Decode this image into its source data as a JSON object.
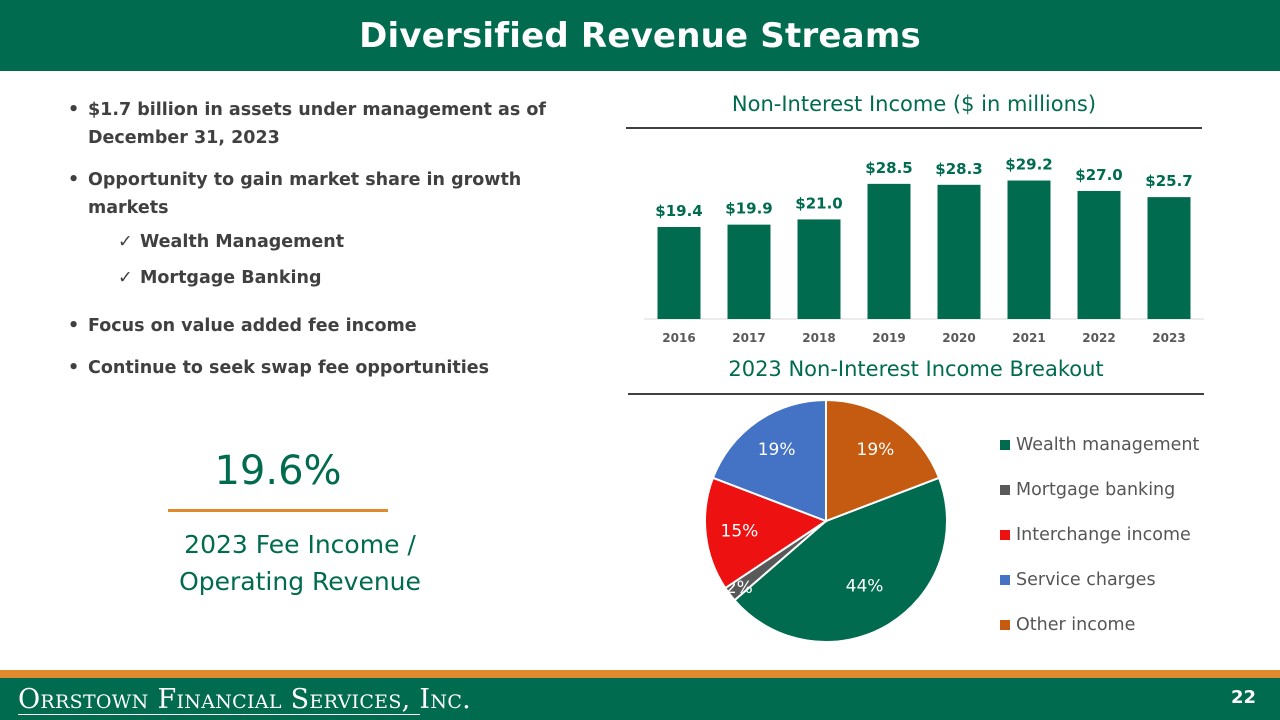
{
  "header": {
    "title": "Diversified Revenue Streams"
  },
  "bullets": {
    "items": [
      "$1.7 billion in assets under management as of December 31, 2023",
      "Opportunity to gain market share in growth markets"
    ],
    "subitems": [
      "Wealth Management",
      "Mortgage Banking"
    ],
    "items_after": [
      "Focus on value added fee income",
      "Continue to seek swap fee opportunities"
    ],
    "bullet_glyph": "•",
    "check_glyph": "✓"
  },
  "kpi": {
    "value": "19.6%",
    "label_line1": "2023 Fee Income /",
    "label_line2": "Operating Revenue"
  },
  "colors": {
    "brand_green": "#006b4f",
    "accent_orange": "#e08a2e"
  },
  "chart_data": [
    {
      "type": "bar",
      "title": "Non-Interest Income ($ in millions)",
      "categories": [
        "2016",
        "2017",
        "2018",
        "2019",
        "2020",
        "2021",
        "2022",
        "2023"
      ],
      "values": [
        19.4,
        19.9,
        21.0,
        28.5,
        28.3,
        29.2,
        27.0,
        25.7
      ],
      "data_labels": [
        "$19.4",
        "$19.9",
        "$21.0",
        "$28.5",
        "$28.3",
        "$29.2",
        "$27.0",
        "$25.7"
      ],
      "ylim": [
        0,
        31
      ],
      "color": "#006b4f",
      "grid": false
    },
    {
      "type": "pie",
      "title": "2023 Non-Interest Income Breakout",
      "labels": [
        "Wealth management",
        "Mortgage banking",
        "Interchange income",
        "Service charges",
        "Other income"
      ],
      "values": [
        44,
        2,
        15,
        19,
        19
      ],
      "data_labels": [
        "44%",
        "2%",
        "15%",
        "19%",
        "19%"
      ],
      "colors": [
        "#006b4f",
        "#595959",
        "#ee1111",
        "#4472c4",
        "#c55a11"
      ],
      "legend": "right"
    }
  ],
  "footer": {
    "company": "Orrstown Financial Services, Inc.",
    "page_number": "22"
  }
}
